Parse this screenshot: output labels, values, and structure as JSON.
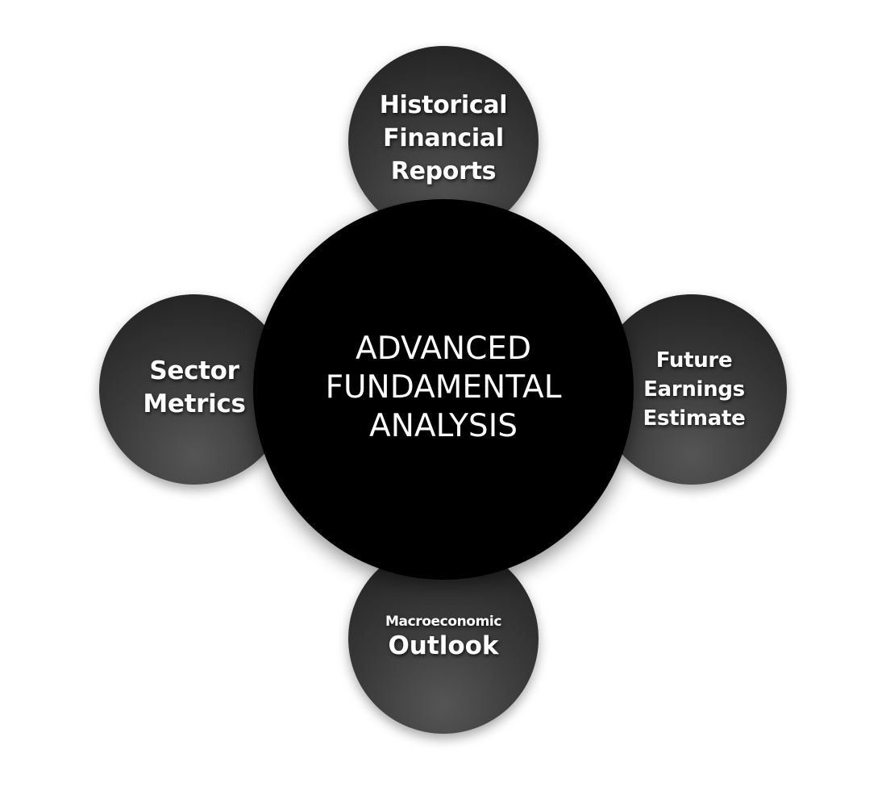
{
  "diagram": {
    "center": {
      "lines": [
        "ADVANCED",
        "FUNDAMENTAL",
        "ANALYSIS"
      ]
    },
    "top": {
      "lines": [
        "Historical",
        "Financial",
        "Reports"
      ]
    },
    "left": {
      "lines": [
        "Sector",
        "Metrics"
      ]
    },
    "right": {
      "lines": [
        "Future",
        "Earnings",
        "Estimate"
      ]
    },
    "bottom": {
      "small": "Macroeconomic",
      "big": "Outlook"
    },
    "colors": {
      "center_fill": "#000000",
      "satellite_fill": "#3a3a3a",
      "text": "#ffffff",
      "background": "#ffffff"
    }
  }
}
